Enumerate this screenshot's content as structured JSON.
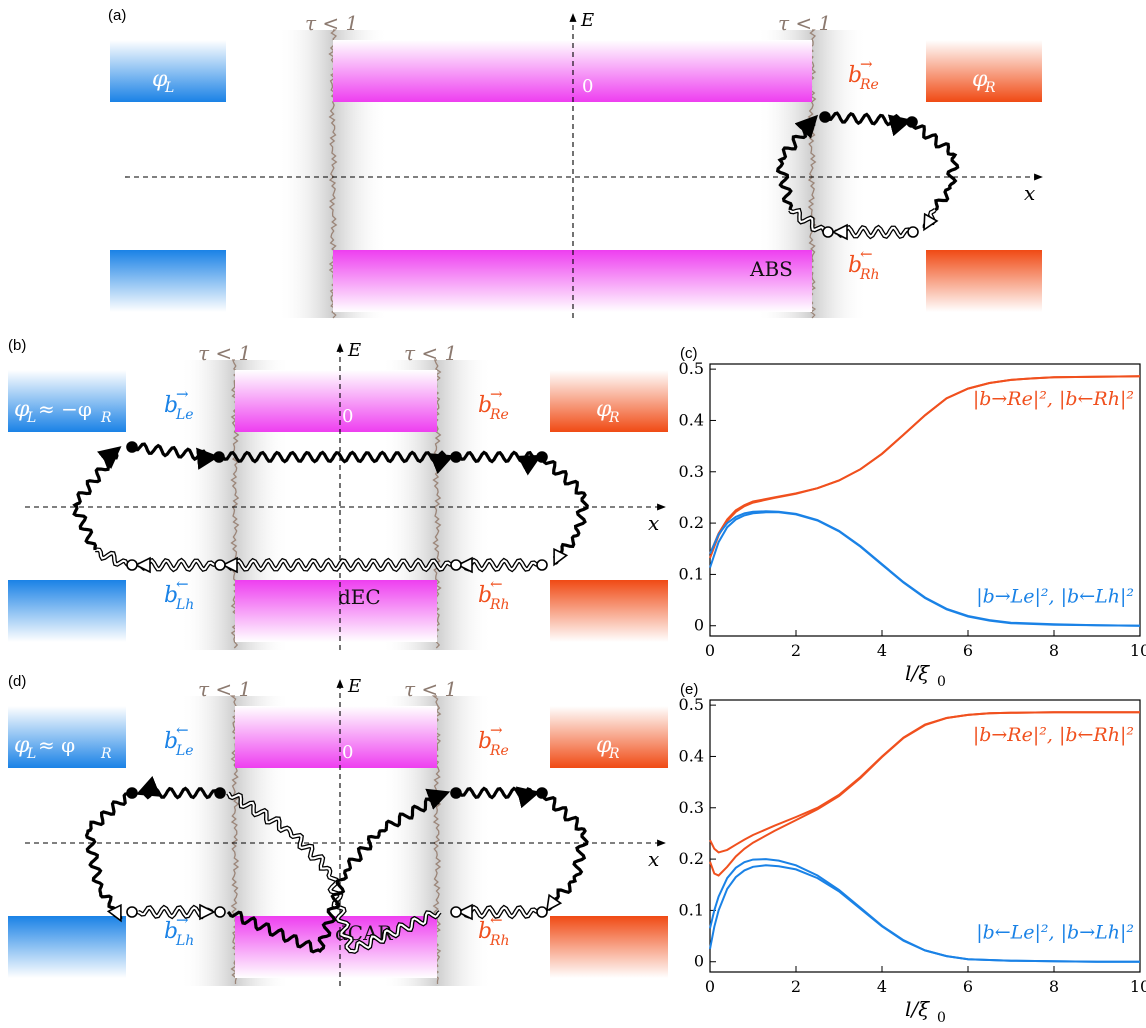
{
  "panels": {
    "a": {
      "letter": "(a)",
      "tau_left": "τ < 1",
      "tau_right": "τ < 1",
      "axis_e": "E",
      "axis_x": "x",
      "zero": "0",
      "lead_left": "φ",
      "lead_left_sub": "L",
      "lead_right": "φ",
      "lead_right_sub": "R",
      "amp_top": "b",
      "amp_top_sub": "Re",
      "amp_top_arrow": "→",
      "amp_bottom": "b",
      "amp_bottom_sub": "Rh",
      "amp_bottom_arrow": "←",
      "process": "ABS"
    },
    "b": {
      "letter": "(b)",
      "tau_left": "τ < 1",
      "tau_right": "τ < 1",
      "axis_e": "E",
      "axis_x": "x",
      "zero": "0",
      "lead_left": "φ",
      "lead_left_sub": "L",
      "lead_left_rel": " ≈ −φ",
      "lead_left_rel_sub": "R",
      "lead_right": "φ",
      "lead_right_sub": "R",
      "amp_left_top": "b",
      "amp_left_top_sub": "Le",
      "amp_left_top_arrow": "→",
      "amp_right_top": "b",
      "amp_right_top_sub": "Re",
      "amp_right_top_arrow": "→",
      "amp_left_bottom": "b",
      "amp_left_bottom_sub": "Lh",
      "amp_left_bottom_arrow": "←",
      "amp_right_bottom": "b",
      "amp_right_bottom_sub": "Rh",
      "amp_right_bottom_arrow": "←",
      "process": "dEC"
    },
    "d": {
      "letter": "(d)",
      "tau_left": "τ < 1",
      "tau_right": "τ < 1",
      "axis_e": "E",
      "axis_x": "x",
      "zero": "0",
      "lead_left": "φ",
      "lead_left_sub": "L",
      "lead_left_rel": " ≈ φ",
      "lead_left_rel_sub": "R",
      "lead_right": "φ",
      "lead_right_sub": "R",
      "amp_left_top": "b",
      "amp_left_top_sub": "Le",
      "amp_left_top_arrow": "←",
      "amp_right_top": "b",
      "amp_right_top_sub": "Re",
      "amp_right_top_arrow": "→",
      "amp_left_bottom": "b",
      "amp_left_bottom_sub": "Lh",
      "amp_left_bottom_arrow": "→",
      "amp_right_bottom": "b",
      "amp_right_bottom_sub": "Rh",
      "amp_right_bottom_arrow": "←",
      "process": "dCAR"
    }
  },
  "colors": {
    "blue": "#1a82e6",
    "red": "#f0501e",
    "magenta": "#f050f0",
    "tau": "#8c7a70"
  },
  "chart_data": [
    {
      "letter": "(c)",
      "type": "line",
      "xlabel": "l/ξ",
      "xlabel_sub": "0",
      "xlim": [
        0,
        10
      ],
      "ylim": [
        -0.02,
        0.51
      ],
      "xticks": [
        0,
        2,
        4,
        6,
        8,
        10
      ],
      "yticks": [
        0,
        0.1,
        0.2,
        0.3,
        0.4,
        0.5
      ],
      "label_red": "|b→Re|², |b←Rh|²",
      "label_blue": "|b→Le|², |b←Lh|²",
      "series": [
        {
          "color": "red",
          "x": [
            0,
            0.2,
            0.4,
            0.6,
            0.8,
            1,
            1.5,
            2,
            2.5,
            3,
            3.5,
            4,
            4.5,
            5,
            5.5,
            6,
            6.5,
            7,
            7.5,
            8,
            9,
            10
          ],
          "y": [
            0.14,
            0.18,
            0.207,
            0.225,
            0.235,
            0.242,
            0.25,
            0.258,
            0.268,
            0.283,
            0.305,
            0.335,
            0.372,
            0.41,
            0.443,
            0.462,
            0.473,
            0.479,
            0.482,
            0.484,
            0.485,
            0.486
          ]
        },
        {
          "color": "red",
          "x": [
            0,
            0.2,
            0.4,
            0.6,
            0.8,
            1,
            1.5,
            2,
            2.5,
            3,
            3.5,
            4,
            4.5,
            5,
            5.5,
            6,
            6.5,
            7,
            7.5,
            8,
            9,
            10
          ],
          "y": [
            0.132,
            0.176,
            0.204,
            0.222,
            0.233,
            0.24,
            0.249,
            0.257,
            0.268,
            0.283,
            0.305,
            0.335,
            0.372,
            0.41,
            0.443,
            0.462,
            0.473,
            0.479,
            0.482,
            0.484,
            0.485,
            0.486
          ]
        },
        {
          "color": "blue",
          "x": [
            0,
            0.2,
            0.4,
            0.6,
            0.8,
            1,
            1.3,
            1.6,
            2,
            2.5,
            3,
            3.5,
            4,
            4.5,
            5,
            5.5,
            6,
            6.5,
            7,
            8,
            9,
            10
          ],
          "y": [
            0.14,
            0.178,
            0.2,
            0.212,
            0.219,
            0.222,
            0.223,
            0.222,
            0.218,
            0.206,
            0.185,
            0.155,
            0.12,
            0.085,
            0.055,
            0.033,
            0.019,
            0.011,
            0.006,
            0.003,
            0.001,
            0
          ]
        },
        {
          "color": "blue",
          "x": [
            0,
            0.2,
            0.4,
            0.6,
            0.8,
            1,
            1.3,
            1.6,
            2,
            2.5,
            3,
            3.5,
            4,
            4.5,
            5,
            5.5,
            6,
            6.5,
            7,
            8,
            9,
            10
          ],
          "y": [
            0.113,
            0.163,
            0.192,
            0.207,
            0.215,
            0.219,
            0.221,
            0.221,
            0.217,
            0.205,
            0.184,
            0.154,
            0.119,
            0.084,
            0.054,
            0.032,
            0.018,
            0.01,
            0.005,
            0.002,
            0.001,
            0
          ]
        }
      ]
    },
    {
      "letter": "(e)",
      "type": "line",
      "xlabel": "l/ξ",
      "xlabel_sub": "0",
      "xlim": [
        0,
        10
      ],
      "ylim": [
        -0.02,
        0.51
      ],
      "xticks": [
        0,
        2,
        4,
        6,
        8,
        10
      ],
      "yticks": [
        0,
        0.1,
        0.2,
        0.3,
        0.4,
        0.5
      ],
      "label_red": "|b→Re|², |b←Rh|²",
      "label_blue": "|b←Le|², |b→Lh|²",
      "series": [
        {
          "color": "red",
          "x": [
            0,
            0.1,
            0.2,
            0.4,
            0.6,
            0.8,
            1,
            1.5,
            2,
            2.5,
            3,
            3.5,
            4,
            4.5,
            5,
            5.5,
            6,
            6.5,
            7,
            8,
            9,
            10
          ],
          "y": [
            0.237,
            0.22,
            0.213,
            0.218,
            0.228,
            0.238,
            0.247,
            0.265,
            0.282,
            0.3,
            0.325,
            0.36,
            0.4,
            0.437,
            0.462,
            0.475,
            0.481,
            0.484,
            0.485,
            0.486,
            0.486,
            0.486
          ]
        },
        {
          "color": "red",
          "x": [
            0,
            0.1,
            0.2,
            0.4,
            0.6,
            0.8,
            1,
            1.5,
            2,
            2.5,
            3,
            3.5,
            4,
            4.5,
            5,
            5.5,
            6,
            6.5,
            7,
            8,
            9,
            10
          ],
          "y": [
            0.195,
            0.172,
            0.168,
            0.185,
            0.205,
            0.22,
            0.232,
            0.255,
            0.276,
            0.297,
            0.323,
            0.358,
            0.399,
            0.436,
            0.461,
            0.475,
            0.481,
            0.484,
            0.485,
            0.486,
            0.486,
            0.486
          ]
        },
        {
          "color": "blue",
          "x": [
            0,
            0.1,
            0.2,
            0.4,
            0.6,
            0.8,
            1,
            1.3,
            1.6,
            2,
            2.5,
            3,
            3.5,
            4,
            4.5,
            5,
            5.5,
            6,
            7,
            8,
            9,
            10
          ],
          "y": [
            0.065,
            0.1,
            0.127,
            0.163,
            0.183,
            0.194,
            0.199,
            0.2,
            0.197,
            0.188,
            0.168,
            0.14,
            0.105,
            0.07,
            0.042,
            0.022,
            0.011,
            0.005,
            0.002,
            0.001,
            0,
            0
          ]
        },
        {
          "color": "blue",
          "x": [
            0,
            0.1,
            0.2,
            0.4,
            0.6,
            0.8,
            1,
            1.3,
            1.6,
            2,
            2.5,
            3,
            3.5,
            4,
            4.5,
            5,
            5.5,
            6,
            7,
            8,
            9,
            10
          ],
          "y": [
            0.025,
            0.068,
            0.1,
            0.142,
            0.165,
            0.178,
            0.185,
            0.188,
            0.186,
            0.18,
            0.163,
            0.137,
            0.103,
            0.069,
            0.041,
            0.022,
            0.011,
            0.005,
            0.002,
            0.001,
            0,
            0
          ]
        }
      ]
    }
  ]
}
